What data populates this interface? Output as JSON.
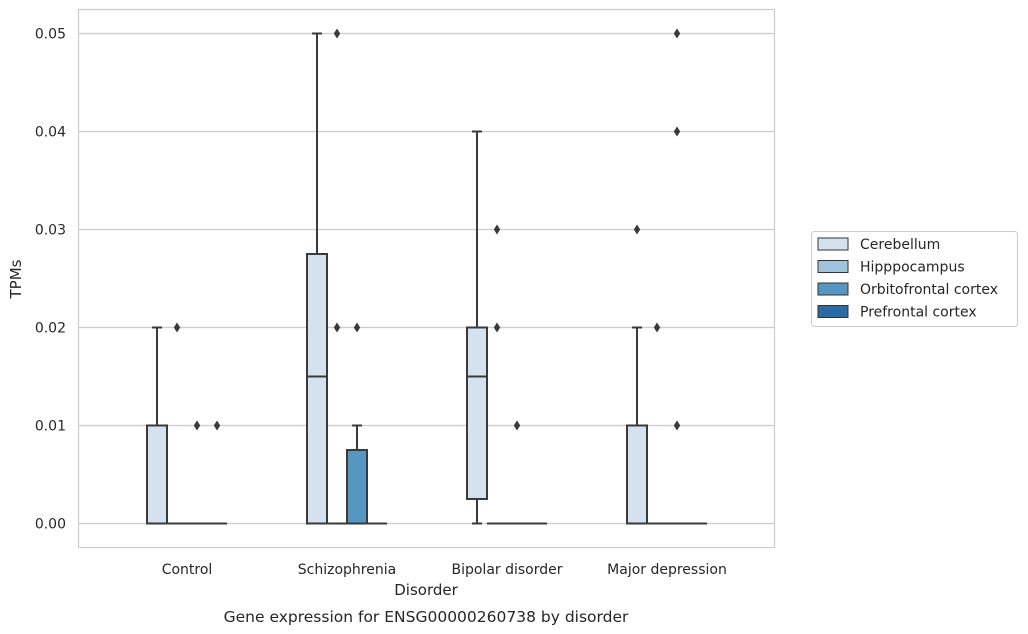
{
  "chart_data": {
    "type": "box",
    "caption": "Gene expression for ENSG00000260738 by disorder",
    "xlabel": "Disorder",
    "ylabel": "TPMs",
    "ylim": [
      -0.0024,
      0.0525
    ],
    "yticks": [
      0.0,
      0.01,
      0.02,
      0.03,
      0.04,
      0.05
    ],
    "ytick_labels": [
      "0.00",
      "0.01",
      "0.02",
      "0.03",
      "0.04",
      "0.05"
    ],
    "grid": true,
    "legend_position": "right",
    "categories": [
      "Control",
      "Schizophrenia",
      "Bipolar disorder",
      "Major depression"
    ],
    "series": [
      {
        "name": "Cerebellum",
        "color": "#d4e2f0",
        "boxes": [
          {
            "q1": 0.0,
            "median": 0.0,
            "q3": 0.01,
            "whislo": 0.0,
            "whishi": 0.02,
            "fliers": []
          },
          {
            "q1": 0.0,
            "median": 0.015,
            "q3": 0.0275,
            "whislo": 0.0,
            "whishi": 0.05,
            "fliers": []
          },
          {
            "q1": 0.0025,
            "median": 0.015,
            "q3": 0.02,
            "whislo": 0.0,
            "whishi": 0.04,
            "fliers": []
          },
          {
            "q1": 0.0,
            "median": 0.0,
            "q3": 0.01,
            "whislo": 0.0,
            "whishi": 0.02,
            "fliers": [
              0.03
            ]
          }
        ]
      },
      {
        "name": "Hipppocampus",
        "color": "#a0c4dd",
        "boxes": [
          {
            "q1": 0.0,
            "median": 0.0,
            "q3": 0.0,
            "whislo": 0.0,
            "whishi": 0.0,
            "fliers": [
              0.02
            ]
          },
          {
            "q1": 0.0,
            "median": 0.0,
            "q3": 0.0,
            "whislo": 0.0,
            "whishi": 0.0,
            "fliers": [
              0.05,
              0.02
            ]
          },
          {
            "q1": 0.0,
            "median": 0.0,
            "q3": 0.0,
            "whislo": 0.0,
            "whishi": 0.0,
            "fliers": [
              0.03,
              0.02
            ]
          },
          {
            "q1": 0.0,
            "median": 0.0,
            "q3": 0.0,
            "whislo": 0.0,
            "whishi": 0.0,
            "fliers": [
              0.02
            ]
          }
        ]
      },
      {
        "name": "Orbitofrontal cortex",
        "color": "#5796c1",
        "boxes": [
          {
            "q1": 0.0,
            "median": 0.0,
            "q3": 0.0,
            "whislo": 0.0,
            "whishi": 0.0,
            "fliers": [
              0.01
            ]
          },
          {
            "q1": 0.0,
            "median": 0.0,
            "q3": 0.0075,
            "whislo": 0.0,
            "whishi": 0.01,
            "fliers": [
              0.02
            ]
          },
          {
            "q1": 0.0,
            "median": 0.0,
            "q3": 0.0,
            "whislo": 0.0,
            "whishi": 0.0,
            "fliers": [
              0.01
            ]
          },
          {
            "q1": 0.0,
            "median": 0.0,
            "q3": 0.0,
            "whislo": 0.0,
            "whishi": 0.0,
            "fliers": [
              0.05,
              0.04,
              0.01
            ]
          }
        ]
      },
      {
        "name": "Prefrontal cortex",
        "color": "#2c6aa6",
        "boxes": [
          {
            "q1": 0.0,
            "median": 0.0,
            "q3": 0.0,
            "whislo": 0.0,
            "whishi": 0.0,
            "fliers": [
              0.01
            ]
          },
          {
            "q1": 0.0,
            "median": 0.0,
            "q3": 0.0,
            "whislo": 0.0,
            "whishi": 0.0,
            "fliers": []
          },
          {
            "q1": 0.0,
            "median": 0.0,
            "q3": 0.0,
            "whislo": 0.0,
            "whishi": 0.0,
            "fliers": []
          },
          {
            "q1": 0.0,
            "median": 0.0,
            "q3": 0.0,
            "whislo": 0.0,
            "whishi": 0.0,
            "fliers": []
          }
        ]
      }
    ],
    "colors": {
      "grid": "#cccccc",
      "frame": "#cccccc",
      "line": "#3a3a3a",
      "text": "#262626"
    }
  }
}
